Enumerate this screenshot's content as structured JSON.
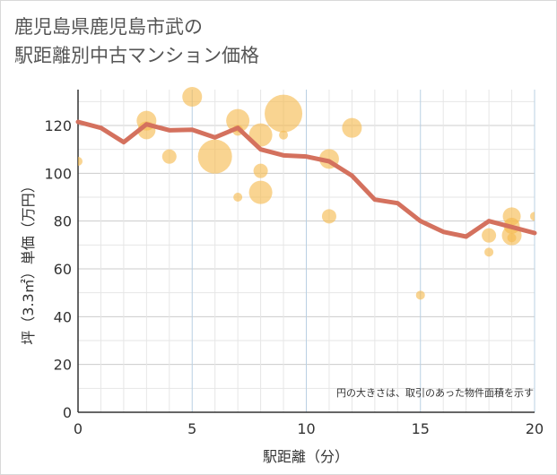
{
  "chart_data": {
    "type": "scatter",
    "title_line1": "鹿児島県鹿児島市武の",
    "title_line2": "駅距離別中古マンション価格",
    "xlabel": "駅距離（分）",
    "ylabel": "坪（3.3㎡）単価（万円）",
    "note": "円の大きさは、取引のあった物件面積を示す",
    "xlim": [
      0,
      20
    ],
    "ylim": [
      0,
      135
    ],
    "xticks": [
      "0",
      "5",
      "10",
      "15",
      "20"
    ],
    "yticks": [
      "0",
      "20",
      "40",
      "60",
      "80",
      "100",
      "120"
    ],
    "grid": true,
    "colors": {
      "bubble": "#f5b94d",
      "line": "#d4715e",
      "grid": "#cccccc",
      "gridMajor": "#b9d0e3"
    },
    "bubbles": [
      {
        "x": 0,
        "y": 105,
        "r": 5
      },
      {
        "x": 3,
        "y": 122,
        "r": 11
      },
      {
        "x": 3,
        "y": 118,
        "r": 10
      },
      {
        "x": 4,
        "y": 107,
        "r": 8
      },
      {
        "x": 5,
        "y": 132,
        "r": 11
      },
      {
        "x": 6,
        "y": 107,
        "r": 19
      },
      {
        "x": 7,
        "y": 122,
        "r": 13
      },
      {
        "x": 7,
        "y": 90,
        "r": 5
      },
      {
        "x": 7,
        "y": 118,
        "r": 6
      },
      {
        "x": 8,
        "y": 116,
        "r": 13
      },
      {
        "x": 8,
        "y": 101,
        "r": 8
      },
      {
        "x": 8,
        "y": 92,
        "r": 13
      },
      {
        "x": 9,
        "y": 125,
        "r": 21
      },
      {
        "x": 9,
        "y": 116,
        "r": 5
      },
      {
        "x": 11,
        "y": 106,
        "r": 11
      },
      {
        "x": 11,
        "y": 82,
        "r": 8
      },
      {
        "x": 12,
        "y": 119,
        "r": 11
      },
      {
        "x": 15,
        "y": 49,
        "r": 5
      },
      {
        "x": 18,
        "y": 74,
        "r": 8
      },
      {
        "x": 18,
        "y": 67,
        "r": 5
      },
      {
        "x": 19,
        "y": 82,
        "r": 10
      },
      {
        "x": 19,
        "y": 78,
        "r": 9
      },
      {
        "x": 19,
        "y": 74,
        "r": 11
      },
      {
        "x": 19,
        "y": 73,
        "r": 5
      },
      {
        "x": 20,
        "y": 82,
        "r": 5
      }
    ],
    "line": {
      "x": [
        0,
        1,
        2,
        3,
        4,
        5,
        6,
        7,
        8,
        9,
        10,
        11,
        12,
        13,
        14,
        15,
        16,
        17,
        18,
        19,
        20
      ],
      "y": [
        121.5,
        119,
        113,
        120.5,
        118,
        118.2,
        115,
        119,
        110,
        107.5,
        107,
        105,
        99,
        89,
        87.5,
        80,
        75.5,
        73.5,
        80,
        77.5,
        75
      ]
    }
  }
}
